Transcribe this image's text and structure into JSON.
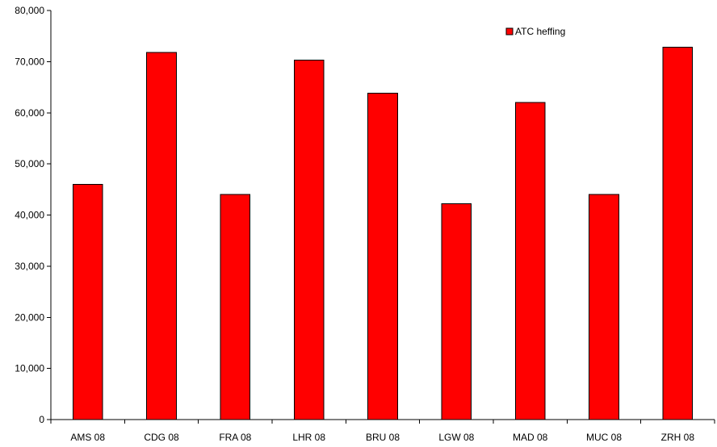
{
  "chart_data": {
    "type": "bar",
    "title": "",
    "xlabel": "",
    "ylabel": "",
    "categories": [
      "AMS 08",
      "CDG 08",
      "FRA 08",
      "LHR 08",
      "BRU 08",
      "LGW 08",
      "MAD 08",
      "MUC 08",
      "ZRH 08"
    ],
    "series": [
      {
        "name": "ATC heffing",
        "color": "#ff0000",
        "values": [
          46000,
          71800,
          44000,
          70300,
          63800,
          42200,
          62000,
          44000,
          72800
        ]
      }
    ],
    "ylim": [
      0,
      80000
    ],
    "yticks": [
      0,
      10000,
      20000,
      30000,
      40000,
      50000,
      60000,
      70000,
      80000
    ],
    "ytick_labels": [
      "0",
      "10,000",
      "20,000",
      "30,000",
      "40,000",
      "50,000",
      "60,000",
      "70,000",
      "80,000"
    ],
    "grid": false,
    "legend_position": "top-right"
  }
}
